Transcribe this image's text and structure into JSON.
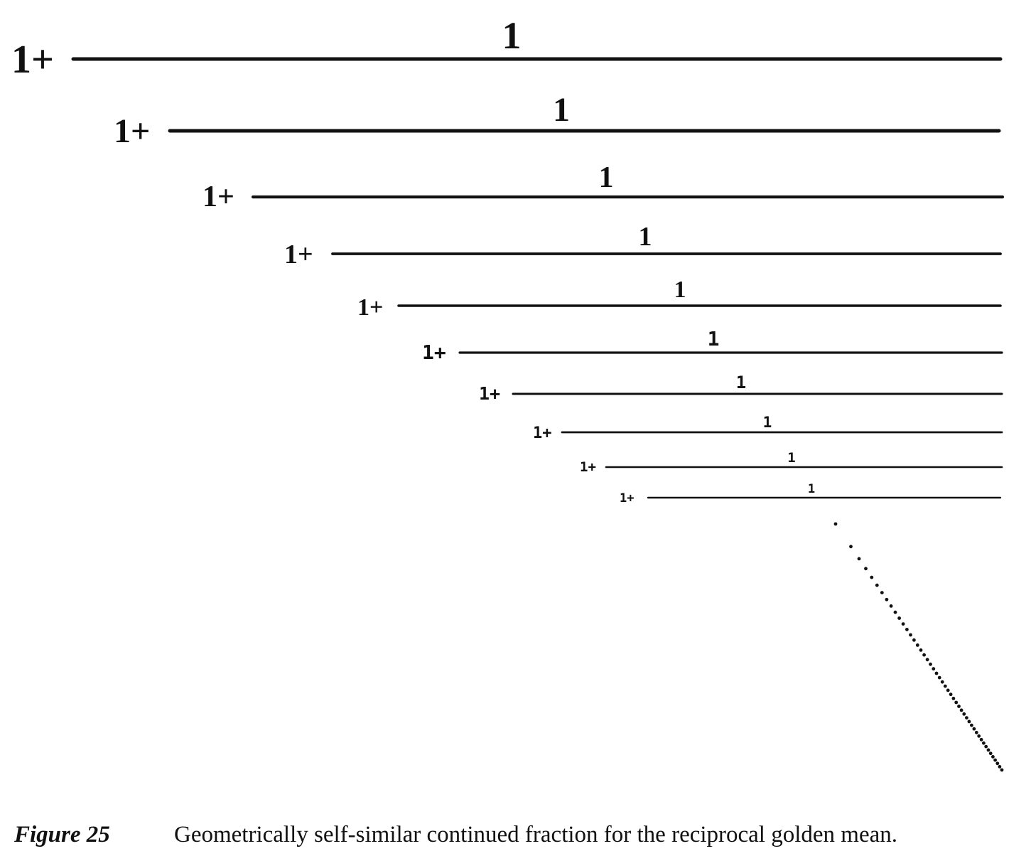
{
  "figure": {
    "levels": [
      {
        "term": "1+",
        "numerator": "1"
      },
      {
        "term": "1+",
        "numerator": "1"
      },
      {
        "term": "1+",
        "numerator": "1"
      },
      {
        "term": "1+",
        "numerator": "1"
      },
      {
        "term": "1+",
        "numerator": "1"
      },
      {
        "term": "1+",
        "numerator": "1"
      },
      {
        "term": "1+",
        "numerator": "1"
      },
      {
        "term": "1+",
        "numerator": "1"
      },
      {
        "term": "1+",
        "numerator": "1"
      },
      {
        "term": "1+",
        "numerator": "1"
      }
    ]
  },
  "caption": {
    "label": "Figure 25",
    "text": "Geometrically self-similar continued fraction for the reciprocal golden mean."
  },
  "colors": {
    "ink": "#111111",
    "background": "#ffffff"
  }
}
